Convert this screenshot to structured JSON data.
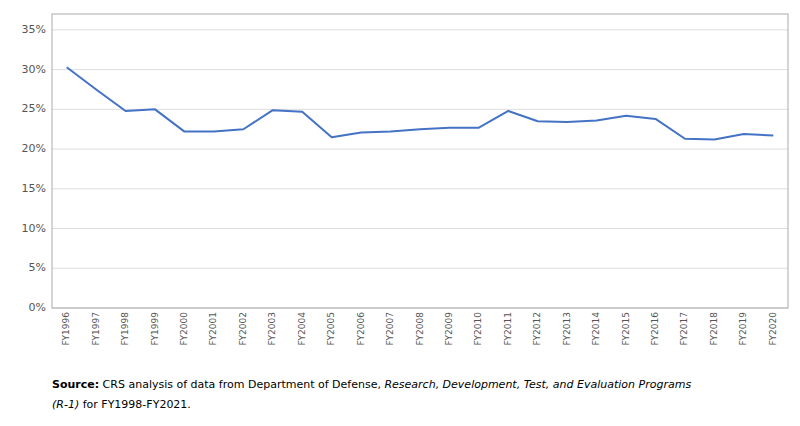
{
  "chart_data": {
    "type": "line",
    "categories": [
      "FY1996",
      "FY1997",
      "FY1998",
      "FY1999",
      "FY2000",
      "FY2001",
      "FY2002",
      "FY2003",
      "FY2004",
      "FY2005",
      "FY2006",
      "FY2007",
      "FY2008",
      "FY2009",
      "FY2010",
      "FY2011",
      "FY2012",
      "FY2013",
      "FY2014",
      "FY2015",
      "FY2016",
      "FY2017",
      "FY2018",
      "FY2019",
      "FY2020"
    ],
    "values": [
      30.3,
      27.5,
      24.8,
      25.0,
      22.2,
      22.2,
      22.5,
      24.9,
      24.7,
      21.5,
      22.1,
      22.2,
      22.5,
      22.7,
      22.7,
      24.8,
      23.5,
      23.4,
      23.6,
      24.2,
      23.8,
      21.3,
      21.2,
      21.9,
      21.7
    ],
    "color": "#4472C4",
    "ylim": [
      0,
      37
    ],
    "yticks": [
      {
        "value": 0,
        "label": "0%"
      },
      {
        "value": 5,
        "label": "5%"
      },
      {
        "value": 10,
        "label": "10%"
      },
      {
        "value": 15,
        "label": "15%"
      },
      {
        "value": 20,
        "label": "20%"
      },
      {
        "value": 25,
        "label": "25%"
      },
      {
        "value": 30,
        "label": "30%"
      },
      {
        "value": 35,
        "label": "35%"
      }
    ],
    "grid": true,
    "annotations": [
      [
        {
          "text": "Source:",
          "style": "bold"
        },
        {
          "text": " CRS analysis of data from Department of Defense, ",
          "style": "normal"
        },
        {
          "text": "Research, Development, Test, and Evaluation Programs",
          "style": "italic"
        }
      ],
      [
        {
          "text": "(R-1)",
          "style": "italic"
        },
        {
          "text": " for FY1998-FY2021.",
          "style": "normal"
        }
      ]
    ]
  }
}
